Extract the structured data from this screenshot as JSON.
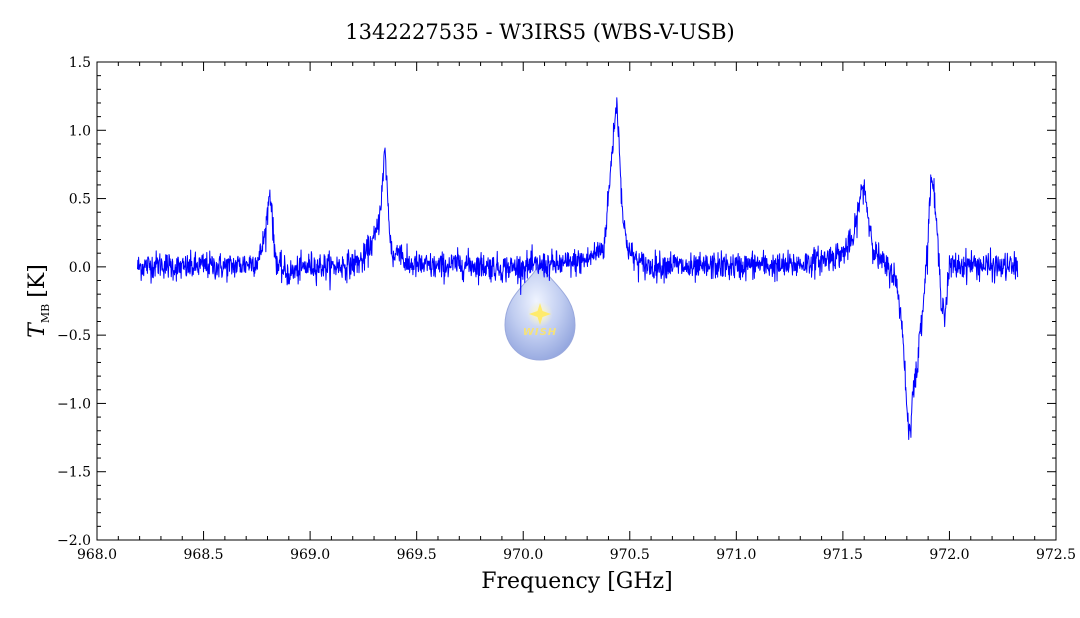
{
  "chart_data": {
    "type": "line",
    "title": "1342227535 - W3IRS5 (WBS-V-USB)",
    "xlabel": "Frequency [GHz]",
    "ylabel_main": "T",
    "ylabel_sub": "MB",
    "ylabel_unit": "[K]",
    "xlim": [
      968.0,
      972.5
    ],
    "ylim": [
      -2.0,
      1.5
    ],
    "x_ticks": [
      "968.0",
      "968.5",
      "969.0",
      "969.5",
      "970.0",
      "970.5",
      "971.0",
      "971.5",
      "972.0",
      "972.5"
    ],
    "y_ticks": [
      "-2.0",
      "-1.5",
      "-1.0",
      "-0.5",
      "0.0",
      "0.5",
      "1.0",
      "1.5"
    ],
    "grid": false,
    "line_color": "#0000ff",
    "series": [
      {
        "x": [
          968.19,
          968.3,
          968.4,
          968.5,
          968.6,
          968.7,
          968.76,
          968.79,
          968.81,
          968.82,
          968.83,
          968.85,
          968.9,
          969.0,
          969.1,
          969.2,
          969.25,
          969.28,
          969.3,
          969.32,
          969.34,
          969.35,
          969.36,
          969.37,
          969.39,
          969.42,
          969.45,
          969.47,
          969.5,
          969.6,
          969.7,
          969.8,
          969.9,
          970.0,
          970.1,
          970.2,
          970.3,
          970.38,
          970.41,
          970.43,
          970.44,
          970.45,
          970.47,
          970.5,
          970.55,
          970.6,
          970.7,
          970.8,
          970.9,
          971.0,
          971.1,
          971.2,
          971.3,
          971.4,
          971.5,
          971.55,
          971.58,
          971.6,
          971.62,
          971.65,
          971.7,
          971.74,
          971.77,
          971.79,
          971.8,
          971.81,
          971.82,
          971.83,
          971.85,
          971.86,
          971.88,
          971.9,
          971.91,
          971.92,
          971.94,
          971.96,
          971.98,
          972.0,
          972.1,
          972.2,
          972.32
        ],
        "y": [
          0.0,
          0.02,
          -0.01,
          0.01,
          0.0,
          0.02,
          0.05,
          0.25,
          0.55,
          0.45,
          0.15,
          0.0,
          -0.05,
          0.01,
          0.0,
          0.02,
          0.05,
          0.15,
          0.2,
          0.3,
          0.6,
          0.85,
          0.65,
          0.3,
          0.05,
          0.15,
          0.0,
          0.02,
          0.01,
          0.0,
          0.02,
          0.01,
          -0.01,
          0.0,
          0.01,
          0.02,
          0.05,
          0.15,
          0.7,
          1.1,
          1.2,
          0.9,
          0.3,
          0.1,
          0.02,
          0.0,
          0.02,
          -0.02,
          0.01,
          0.0,
          0.02,
          0.0,
          0.02,
          0.05,
          0.1,
          0.2,
          0.5,
          0.6,
          0.35,
          0.1,
          0.0,
          -0.05,
          -0.3,
          -0.7,
          -1.05,
          -1.2,
          -1.1,
          -0.9,
          -0.75,
          -0.5,
          -0.2,
          0.2,
          0.6,
          0.65,
          0.3,
          -0.2,
          -0.35,
          0.0,
          0.02,
          0.0,
          0.0
        ]
      }
    ],
    "noise": 0.05
  },
  "logo": {
    "text": "WISH"
  }
}
